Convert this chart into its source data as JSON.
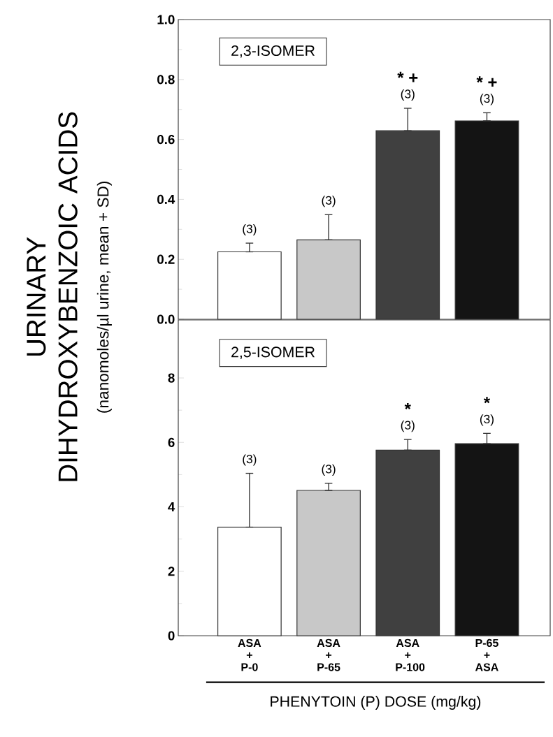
{
  "chart_data": [
    {
      "type": "bar",
      "title": "2,3-ISOMER",
      "ylabel": "URINARY DIHYDROXYBENZOIC ACIDS",
      "categories": [
        null,
        null,
        null,
        null
      ],
      "values": [
        0.225,
        0.265,
        0.629,
        0.662
      ],
      "errors": [
        [
          0.225,
          0.254
        ],
        [
          0.265,
          0.349
        ],
        [
          0.629,
          0.704
        ],
        [
          0.662,
          0.689
        ]
      ],
      "colors": [
        "#ffffff",
        "#c8c8c8",
        "#404040",
        "#141414"
      ],
      "ylim": [
        0,
        1.0
      ],
      "yticks": [
        {
          "value": 0,
          "label": "0.0"
        },
        {
          "value": 0.2,
          "label": "0.2"
        },
        {
          "value": 0.4,
          "label": "0.4"
        },
        {
          "value": 0.6,
          "label": "0.6"
        },
        {
          "value": 0.8,
          "label": "0.8"
        },
        {
          "value": 1.0,
          "label": "1.0"
        }
      ],
      "tick_labels": "y",
      "annotations": [
        "(3)",
        "(3)",
        "(3)",
        "(3)",
        "* +",
        "* +"
      ]
    },
    {
      "type": "bar",
      "title": "2,5-ISOMER",
      "ylabel": "(nanomoles/µl urine, mean + SD)",
      "xlabel": "PHENYTOIN (P) DOSE  (mg/kg)",
      "categories": [
        "ASA + P-0",
        "ASA + P-65",
        "ASA + P-100",
        "P-65 + ASA"
      ],
      "values": [
        3.37,
        4.51,
        5.76,
        5.96
      ],
      "errors": [
        [
          3.37,
          5.04
        ],
        [
          4.51,
          4.73
        ],
        [
          5.76,
          6.09
        ],
        [
          5.96,
          6.28
        ]
      ],
      "colors": [
        "#ffffff",
        "#c8c8c8",
        "#404040",
        "#141414"
      ],
      "ylim": [
        0,
        9.8
      ],
      "yticks": [
        0,
        2,
        4,
        6,
        8
      ],
      "annotations": [
        "(3)",
        "(3)",
        "(3)",
        "(3)",
        "*",
        "*"
      ]
    }
  ]
}
